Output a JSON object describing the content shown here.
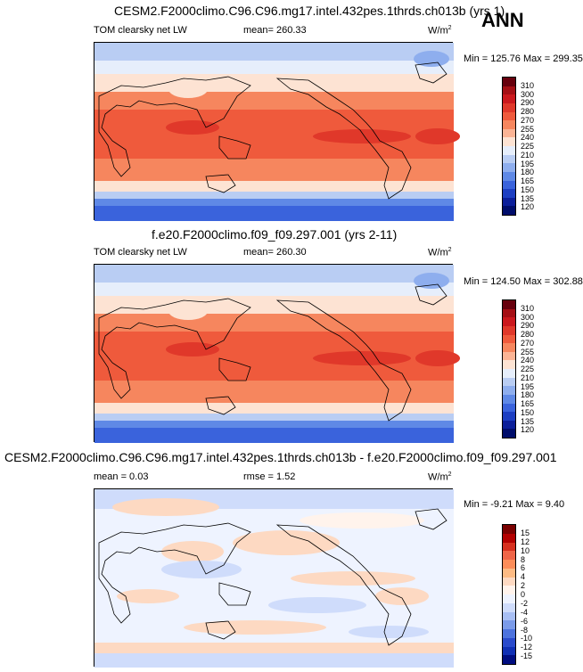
{
  "season": "ANN",
  "panels": [
    {
      "title": "CESM2.F2000climo.C96.C96.mg17.intel.432pes.1thrds.ch013b (yrs 1)",
      "variable": "TOM clearsky net LW",
      "mean_label": "mean= 260.33",
      "units": "W/m",
      "units_exp": "2",
      "minmax": "Min = 125.76 Max = 299.35",
      "levels": [
        "310",
        "300",
        "290",
        "280",
        "270",
        "255",
        "240",
        "225",
        "210",
        "195",
        "180",
        "165",
        "150",
        "135",
        "120"
      ]
    },
    {
      "title": "f.e20.F2000climo.f09_f09.297.001 (yrs 2-11)",
      "variable": "TOM clearsky net LW",
      "mean_label": "mean= 260.30",
      "units": "W/m",
      "units_exp": "2",
      "minmax": "Min = 124.50 Max = 302.88",
      "levels": [
        "310",
        "300",
        "290",
        "280",
        "270",
        "255",
        "240",
        "225",
        "210",
        "195",
        "180",
        "165",
        "150",
        "135",
        "120"
      ]
    },
    {
      "title": "CESM2.F2000climo.C96.C96.mg17.intel.432pes.1thrds.ch013b - f.e20.F2000climo.f09_f09.297.001",
      "mean_label": "mean =   0.03",
      "rmse_label": "rmse =   1.52",
      "units": "W/m",
      "units_exp": "2",
      "minmax": "Min =  -9.21 Max =   9.40",
      "levels": [
        "15",
        "12",
        "10",
        "8",
        "6",
        "4",
        "2",
        "0",
        "-2",
        "-4",
        "-6",
        "-8",
        "-10",
        "-12",
        "-15"
      ]
    }
  ],
  "colors": {
    "abs_scale": [
      "#67000d",
      "#a50f15",
      "#cb181d",
      "#e0382a",
      "#ef5a3c",
      "#f6865e",
      "#fbb495",
      "#fde3d3",
      "#e6eefb",
      "#b9cdf3",
      "#8eaeee",
      "#5f89e6",
      "#3a63dc",
      "#1d3fc2",
      "#0c1f9a",
      "#000d6b"
    ],
    "diff_scale": [
      "#7a0000",
      "#b30000",
      "#d7301f",
      "#ef6548",
      "#fc8d59",
      "#fdbb84",
      "#fdd9c2",
      "#fff3ec",
      "#eef3ff",
      "#cfdcfb",
      "#a8bff4",
      "#7b9be9",
      "#4d73de",
      "#2a4bcc",
      "#1030b4",
      "#000d80"
    ]
  }
}
